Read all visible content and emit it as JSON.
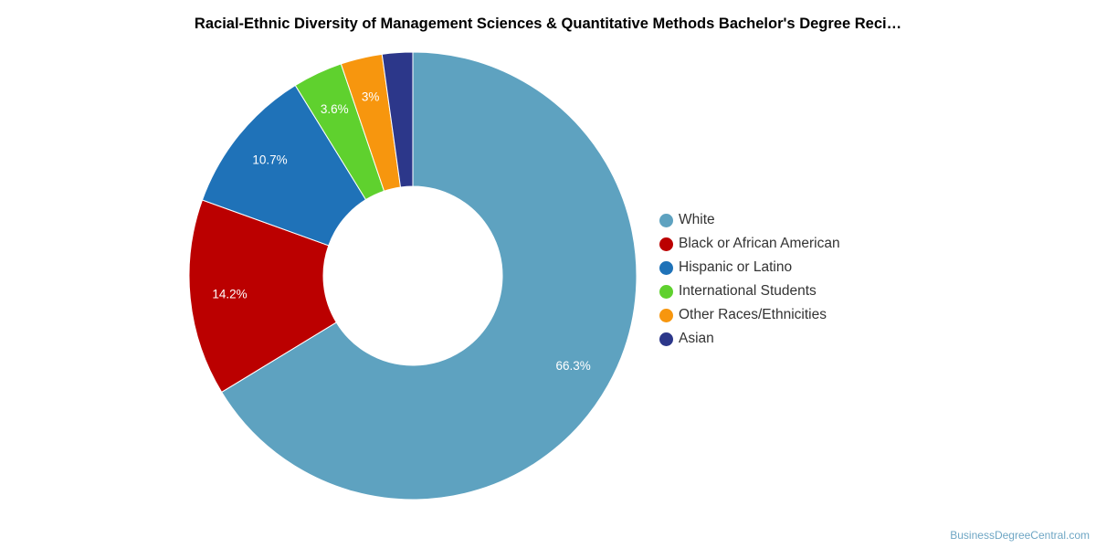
{
  "chart_data": {
    "type": "pie",
    "title": "Racial-Ethnic Diversity of Management Sciences & Quantitative Methods Bachelor's Degree Reci…",
    "legend_position": "right",
    "slices": [
      {
        "name": "White",
        "value": 66.3,
        "label": "66.3%",
        "color": "#5ea2c0"
      },
      {
        "name": "Black or African American",
        "value": 14.2,
        "label": "14.2%",
        "color": "#bb0000"
      },
      {
        "name": "Hispanic or Latino",
        "value": 10.7,
        "label": "10.7%",
        "color": "#1f72b8"
      },
      {
        "name": "International Students",
        "value": 3.6,
        "label": "3.6%",
        "color": "#5fd12e"
      },
      {
        "name": "Other Races/Ethnicities",
        "value": 3.0,
        "label": "3%",
        "color": "#f7960e"
      },
      {
        "name": "Asian",
        "value": 2.2,
        "label": "",
        "color": "#2c378a"
      }
    ]
  },
  "footer": {
    "credit": "BusinessDegreeCentral.com"
  }
}
